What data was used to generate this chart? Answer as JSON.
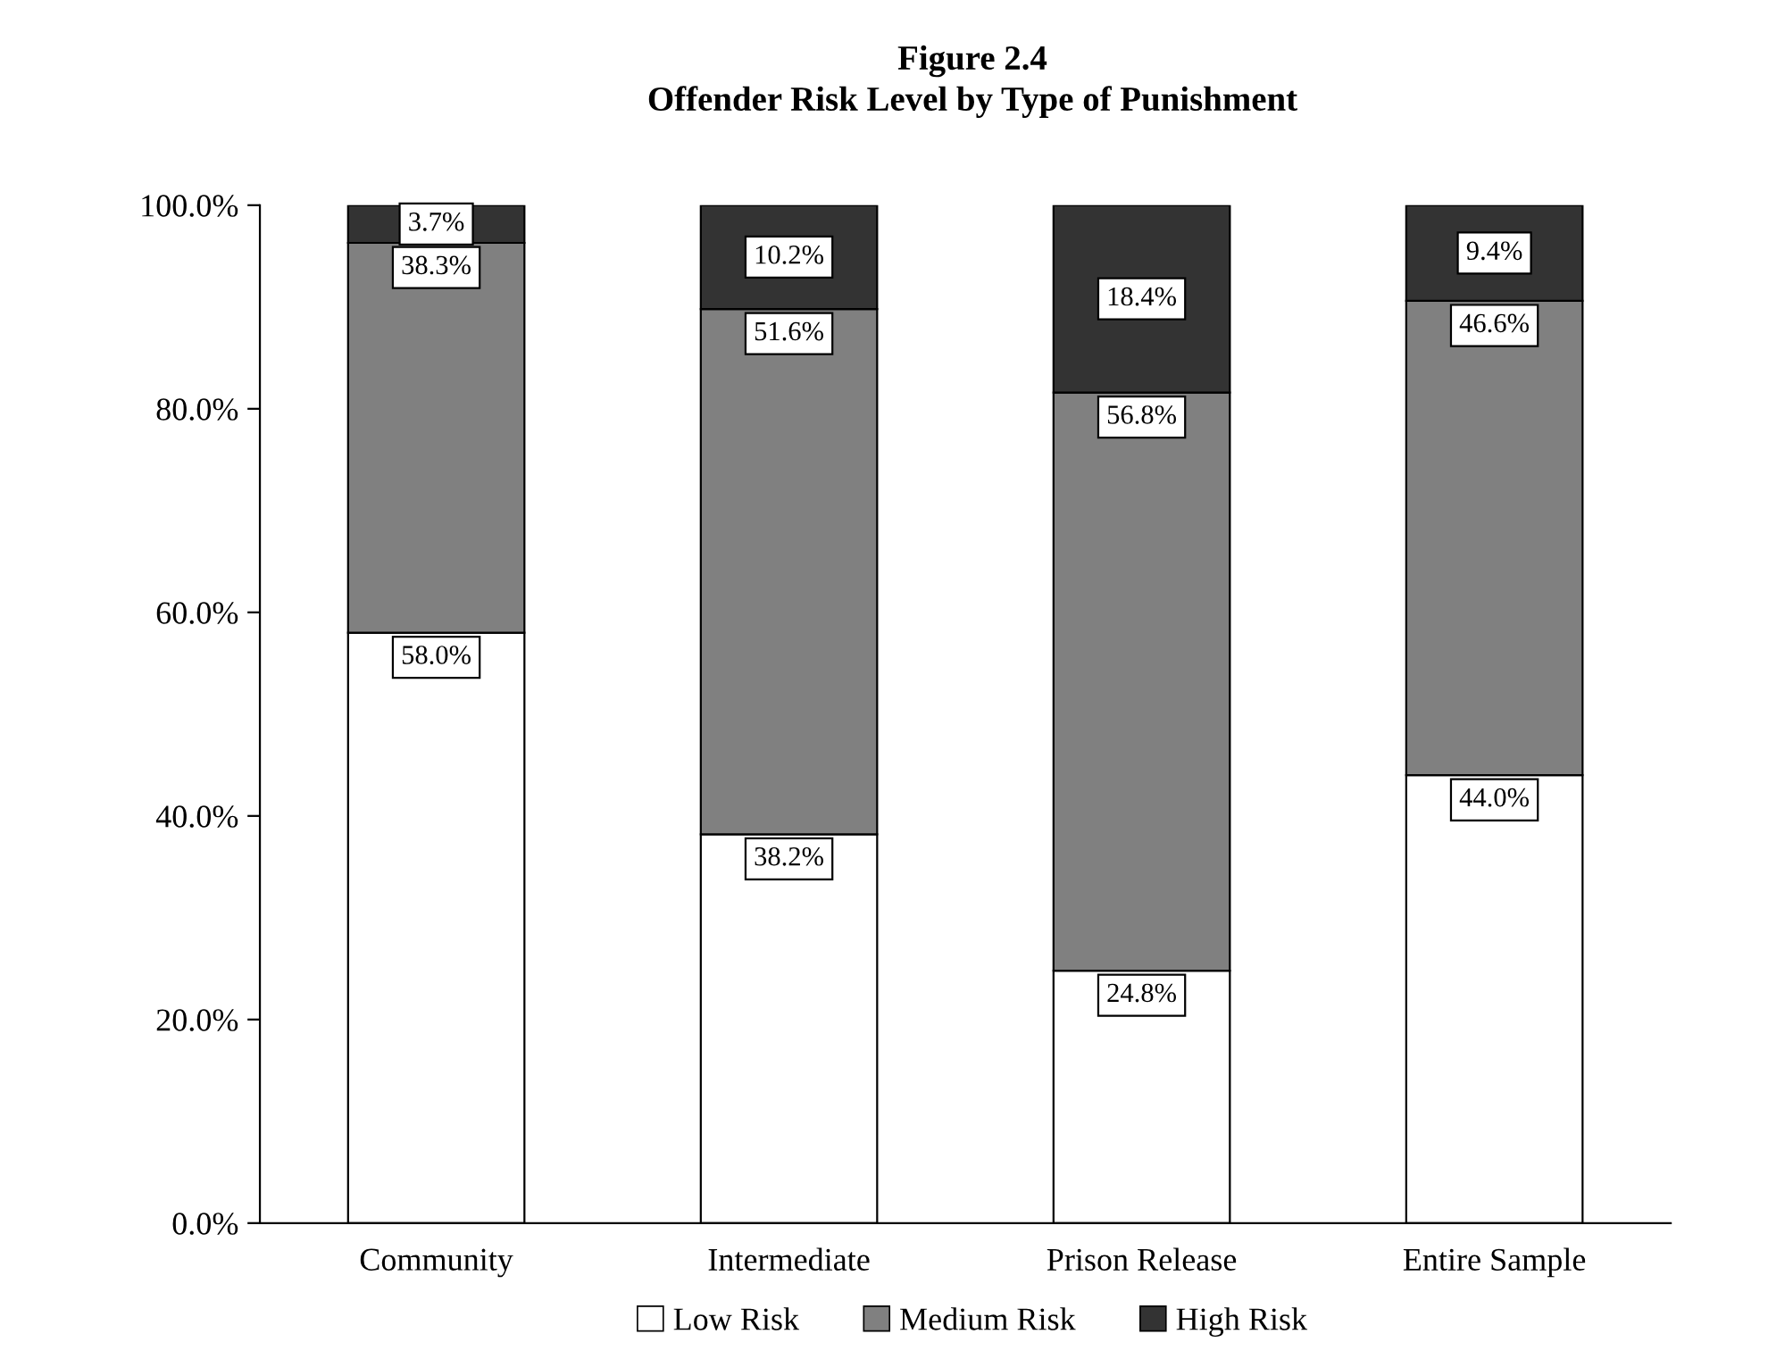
{
  "chart_data": {
    "type": "bar",
    "title": "Figure 2.4",
    "subtitle": "Offender Risk Level by Type of Punishment",
    "categories": [
      "Community",
      "Intermediate",
      "Prison Release",
      "Entire Sample"
    ],
    "stacked": true,
    "series": [
      {
        "name": "Low Risk",
        "color": "#ffffff",
        "values": [
          58.0,
          38.2,
          24.8,
          44.0
        ],
        "value_labels": [
          "58.0%",
          "38.2%",
          "24.8%",
          "44.0%"
        ]
      },
      {
        "name": "Medium Risk",
        "color": "#808080",
        "values": [
          38.3,
          51.6,
          56.8,
          46.6
        ],
        "value_labels": [
          "38.3%",
          "51.6%",
          "56.8%",
          "46.6%"
        ]
      },
      {
        "name": "High Risk",
        "color": "#333333",
        "values": [
          3.7,
          10.2,
          18.4,
          9.4
        ],
        "value_labels": [
          "3.7%",
          "10.2%",
          "18.4%",
          "9.4%"
        ]
      }
    ],
    "ylim": [
      0,
      100
    ],
    "yticks": [
      {
        "value": 0,
        "label": "0.0%"
      },
      {
        "value": 20,
        "label": "20.0%"
      },
      {
        "value": 40,
        "label": "40.0%"
      },
      {
        "value": 60,
        "label": "60.0%"
      },
      {
        "value": 80,
        "label": "80.0%"
      },
      {
        "value": 100,
        "label": "100.0%"
      }
    ],
    "grid": false,
    "legend": "bottom"
  }
}
